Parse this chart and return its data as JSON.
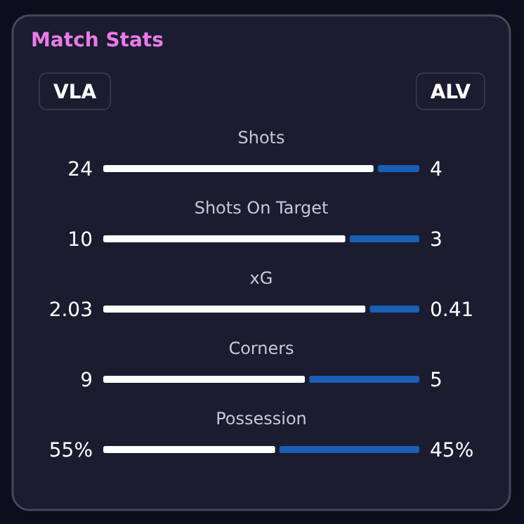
{
  "chart_data": [
    {
      "type": "other",
      "title": "Match Stats",
      "annotations": [
        "VLA",
        "ALV"
      ]
    },
    {
      "type": "bar",
      "orientation": "horizontal",
      "stacked": true,
      "title": "Shots",
      "categories": [
        null
      ],
      "xlim": [
        0,
        28
      ],
      "series": [
        {
          "color": "#ffffff",
          "values": [
            24
          ],
          "value_labels": [
            "24"
          ]
        },
        {
          "color": "#1a5fb4",
          "values": [
            4
          ],
          "value_labels": [
            "4"
          ]
        }
      ]
    },
    {
      "type": "bar",
      "orientation": "horizontal",
      "stacked": true,
      "title": "Shots On Target",
      "categories": [
        null
      ],
      "xlim": [
        0,
        13
      ],
      "series": [
        {
          "color": "#ffffff",
          "values": [
            10
          ],
          "value_labels": [
            "10"
          ]
        },
        {
          "color": "#1a5fb4",
          "values": [
            3
          ],
          "value_labels": [
            "3"
          ]
        }
      ]
    },
    {
      "type": "bar",
      "orientation": "horizontal",
      "stacked": true,
      "title": "xG",
      "categories": [
        null
      ],
      "xlim": [
        0,
        2.44
      ],
      "series": [
        {
          "color": "#ffffff",
          "values": [
            2.03
          ],
          "value_labels": [
            "2.03"
          ]
        },
        {
          "color": "#1a5fb4",
          "values": [
            0.41
          ],
          "value_labels": [
            "0.41"
          ]
        }
      ]
    },
    {
      "type": "bar",
      "orientation": "horizontal",
      "stacked": true,
      "title": "Corners",
      "categories": [
        null
      ],
      "xlim": [
        0,
        14
      ],
      "series": [
        {
          "color": "#ffffff",
          "values": [
            9
          ],
          "value_labels": [
            "9"
          ]
        },
        {
          "color": "#1a5fb4",
          "values": [
            5
          ],
          "value_labels": [
            "5"
          ]
        }
      ]
    },
    {
      "type": "bar",
      "orientation": "horizontal",
      "stacked": true,
      "title": "Possession",
      "categories": [
        null
      ],
      "xlim": [
        0,
        100
      ],
      "series": [
        {
          "color": "#ffffff",
          "values": [
            55
          ],
          "value_labels": [
            "55%"
          ]
        },
        {
          "color": "#1a5fb4",
          "values": [
            45
          ],
          "value_labels": [
            "45%"
          ]
        }
      ]
    }
  ]
}
